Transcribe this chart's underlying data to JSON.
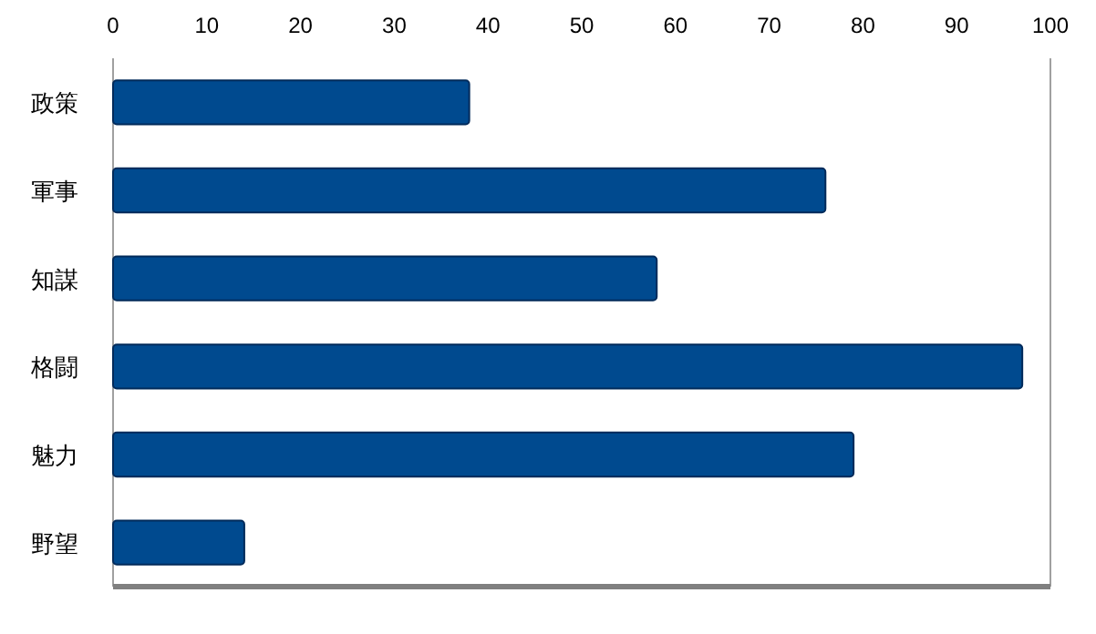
{
  "chart_data": {
    "type": "bar",
    "orientation": "horizontal",
    "categories": [
      "政策",
      "軍事",
      "知謀",
      "格闘",
      "魅力",
      "野望"
    ],
    "values": [
      38,
      76,
      58,
      97,
      79,
      14
    ],
    "color": "#004a8f",
    "xlim": [
      0,
      100
    ],
    "xticks": [
      0,
      10,
      20,
      30,
      40,
      50,
      60,
      70,
      80,
      90,
      100
    ]
  }
}
